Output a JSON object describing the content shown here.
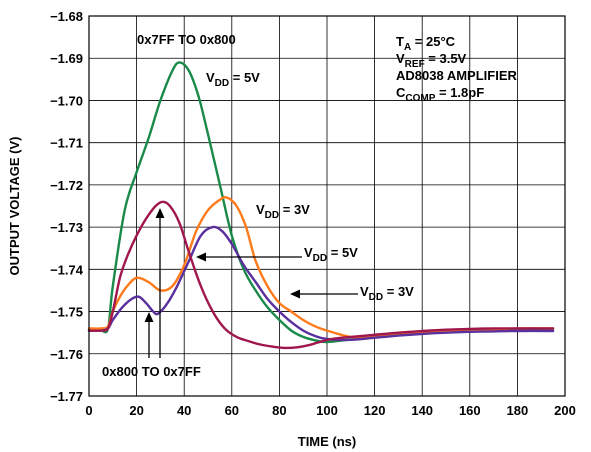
{
  "chart_data": {
    "type": "line",
    "xlabel": "TIME (ns)",
    "ylabel": "OUTPUT VOLTAGE (V)",
    "xlim": [
      0,
      200
    ],
    "ylim": [
      -1.77,
      -1.68
    ],
    "xticks": [
      "0",
      "20",
      "40",
      "60",
      "80",
      "100",
      "120",
      "140",
      "160",
      "180",
      "200"
    ],
    "yticks": [
      "−1.68",
      "−1.69",
      "−1.70",
      "−1.71",
      "−1.72",
      "−1.73",
      "−1.74",
      "−1.75",
      "−1.76",
      "−1.77"
    ],
    "grid": true,
    "conditions": {
      "ta": {
        "main": "T",
        "sub": "A",
        "rest": " = 25°C"
      },
      "vref": {
        "main": "V",
        "sub": "REF",
        "rest": " = 3.5V"
      },
      "amp": "AD8038 AMPLIFIER",
      "ccomp": {
        "main": "C",
        "sub": "COMP",
        "rest": " = 1.8pF"
      }
    },
    "annotations": {
      "up_transition": "0x7FF TO 0x800",
      "down_transition": "0x800 TO 0x7FF",
      "green_vdd": {
        "main": "V",
        "sub": "DD",
        "rest": " = 5V"
      },
      "orange_vdd": {
        "main": "V",
        "sub": "DD",
        "rest": " = 3V"
      },
      "purple_vdd": {
        "main": "V",
        "sub": "DD",
        "rest": " = 5V"
      },
      "red_vdd": {
        "main": "V",
        "sub": "DD",
        "rest": " = 3V"
      }
    },
    "series": [
      {
        "color": "#1a8a4a",
        "points": [
          [
            0,
            -1.7545
          ],
          [
            5,
            -1.7545
          ],
          [
            8,
            -1.754
          ],
          [
            10,
            -1.744
          ],
          [
            15,
            -1.726
          ],
          [
            20,
            -1.717
          ],
          [
            25,
            -1.709
          ],
          [
            30,
            -1.7
          ],
          [
            35,
            -1.693
          ],
          [
            38,
            -1.691
          ],
          [
            42,
            -1.693
          ],
          [
            46,
            -1.699
          ],
          [
            50,
            -1.708
          ],
          [
            55,
            -1.72
          ],
          [
            60,
            -1.732
          ],
          [
            65,
            -1.74
          ],
          [
            70,
            -1.745
          ],
          [
            75,
            -1.749
          ],
          [
            80,
            -1.752
          ],
          [
            85,
            -1.7545
          ],
          [
            90,
            -1.756
          ],
          [
            95,
            -1.7568
          ],
          [
            100,
            -1.7572
          ],
          [
            110,
            -1.7566
          ],
          [
            120,
            -1.756
          ],
          [
            130,
            -1.7555
          ],
          [
            140,
            -1.755
          ],
          [
            150,
            -1.7548
          ],
          [
            160,
            -1.7546
          ],
          [
            170,
            -1.7545
          ],
          [
            180,
            -1.7545
          ],
          [
            195,
            -1.7545
          ]
        ]
      },
      {
        "color": "#ff7a1a",
        "points": [
          [
            0,
            -1.754
          ],
          [
            5,
            -1.754
          ],
          [
            8,
            -1.7535
          ],
          [
            10,
            -1.75
          ],
          [
            13,
            -1.7465
          ],
          [
            16,
            -1.744
          ],
          [
            20,
            -1.742
          ],
          [
            25,
            -1.743
          ],
          [
            30,
            -1.745
          ],
          [
            35,
            -1.744
          ],
          [
            40,
            -1.739
          ],
          [
            45,
            -1.731
          ],
          [
            50,
            -1.726
          ],
          [
            55,
            -1.7235
          ],
          [
            58,
            -1.723
          ],
          [
            62,
            -1.725
          ],
          [
            66,
            -1.73
          ],
          [
            70,
            -1.738
          ],
          [
            75,
            -1.744
          ],
          [
            80,
            -1.748
          ],
          [
            85,
            -1.75
          ],
          [
            90,
            -1.752
          ],
          [
            95,
            -1.7535
          ],
          [
            100,
            -1.7545
          ],
          [
            110,
            -1.756
          ],
          [
            120,
            -1.756
          ],
          [
            130,
            -1.7555
          ],
          [
            140,
            -1.755
          ],
          [
            150,
            -1.7546
          ],
          [
            160,
            -1.7544
          ],
          [
            170,
            -1.7542
          ],
          [
            180,
            -1.754
          ],
          [
            195,
            -1.754
          ]
        ]
      },
      {
        "color": "#5a2f9e",
        "points": [
          [
            0,
            -1.7545
          ],
          [
            5,
            -1.7545
          ],
          [
            8,
            -1.754
          ],
          [
            10,
            -1.752
          ],
          [
            14,
            -1.749
          ],
          [
            18,
            -1.747
          ],
          [
            21,
            -1.7465
          ],
          [
            24,
            -1.748
          ],
          [
            27,
            -1.75
          ],
          [
            29,
            -1.7505
          ],
          [
            33,
            -1.748
          ],
          [
            37,
            -1.744
          ],
          [
            42,
            -1.738
          ],
          [
            47,
            -1.732
          ],
          [
            52,
            -1.73
          ],
          [
            56,
            -1.731
          ],
          [
            60,
            -1.734
          ],
          [
            65,
            -1.739
          ],
          [
            70,
            -1.743
          ],
          [
            75,
            -1.747
          ],
          [
            80,
            -1.75
          ],
          [
            85,
            -1.7525
          ],
          [
            90,
            -1.7545
          ],
          [
            95,
            -1.7558
          ],
          [
            100,
            -1.7565
          ],
          [
            110,
            -1.7567
          ],
          [
            120,
            -1.7562
          ],
          [
            130,
            -1.7557
          ],
          [
            140,
            -1.7553
          ],
          [
            150,
            -1.755
          ],
          [
            160,
            -1.7548
          ],
          [
            170,
            -1.7547
          ],
          [
            180,
            -1.7546
          ],
          [
            195,
            -1.7546
          ]
        ]
      },
      {
        "color": "#a0174e",
        "points": [
          [
            0,
            -1.7545
          ],
          [
            5,
            -1.7545
          ],
          [
            8,
            -1.754
          ],
          [
            10,
            -1.75
          ],
          [
            13,
            -1.742
          ],
          [
            16,
            -1.737
          ],
          [
            20,
            -1.732
          ],
          [
            24,
            -1.728
          ],
          [
            28,
            -1.725
          ],
          [
            31,
            -1.724
          ],
          [
            34,
            -1.725
          ],
          [
            38,
            -1.729
          ],
          [
            42,
            -1.736
          ],
          [
            47,
            -1.744
          ],
          [
            52,
            -1.75
          ],
          [
            57,
            -1.754
          ],
          [
            62,
            -1.756
          ],
          [
            67,
            -1.757
          ],
          [
            72,
            -1.7578
          ],
          [
            77,
            -1.7583
          ],
          [
            82,
            -1.7586
          ],
          [
            87,
            -1.7585
          ],
          [
            92,
            -1.758
          ],
          [
            97,
            -1.7572
          ],
          [
            102,
            -1.7565
          ],
          [
            110,
            -1.756
          ],
          [
            120,
            -1.7555
          ],
          [
            130,
            -1.755
          ],
          [
            140,
            -1.7546
          ],
          [
            150,
            -1.7543
          ],
          [
            160,
            -1.7541
          ],
          [
            170,
            -1.754
          ],
          [
            180,
            -1.754
          ],
          [
            195,
            -1.754
          ]
        ]
      }
    ]
  }
}
